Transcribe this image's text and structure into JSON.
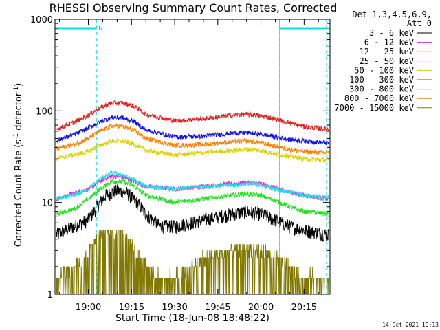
{
  "chart_data": {
    "type": "line",
    "title": "RHESSI Observing Summary Count Rates, Corrected",
    "xlabel": "Start Time (18-Jun-08 18:48:22)",
    "ylabel_main": "Corrected Count Rate (s",
    "ylabel_sup1": "-1",
    "ylabel_mid": " detector",
    "ylabel_sup2": "-1",
    "ylabel_end": ")",
    "yscale": "log",
    "ylim": [
      1,
      1000
    ],
    "x_range_minutes_from_1900": [
      -11.6,
      84.0
    ],
    "x_ticks": [
      {
        "min": 0,
        "label": "19:00"
      },
      {
        "min": 15,
        "label": "19:15"
      },
      {
        "min": 30,
        "label": "19:30"
      },
      {
        "min": 45,
        "label": "19:45"
      },
      {
        "min": 60,
        "label": "20:00"
      },
      {
        "min": 75,
        "label": "20:15"
      }
    ],
    "y_ticks": [
      {
        "value": 1,
        "label": "1"
      },
      {
        "value": 10,
        "label": "10"
      },
      {
        "value": 100,
        "label": "100"
      },
      {
        "value": 1000,
        "label": "1000"
      }
    ],
    "legend_header": [
      "Det 1,3,4,5,6,9,",
      "Att 0"
    ],
    "legend_position": "right",
    "night_markers": [
      {
        "min": 2.8,
        "label": "N"
      },
      {
        "min": 66.5,
        "label": ""
      },
      {
        "min": 82.8,
        "label": ""
      }
    ],
    "series": [
      {
        "name": "3 - 6 keV",
        "color": "#000000",
        "points": [
          [
            -11,
            4.5
          ],
          [
            -5,
            5.5
          ],
          [
            0,
            6.5
          ],
          [
            3,
            9
          ],
          [
            6,
            12
          ],
          [
            10,
            13.5
          ],
          [
            13,
            13
          ],
          [
            17,
            10
          ],
          [
            20,
            7.5
          ],
          [
            25,
            5.5
          ],
          [
            30,
            5.5
          ],
          [
            40,
            6.5
          ],
          [
            50,
            7.5
          ],
          [
            55,
            8
          ],
          [
            60,
            7.5
          ],
          [
            65,
            6.5
          ],
          [
            70,
            5.5
          ],
          [
            75,
            5
          ],
          [
            83,
            4.5
          ]
        ]
      },
      {
        "name": "6 - 12 keV",
        "color": "#e020e0",
        "points": [
          [
            -11,
            11
          ],
          [
            -5,
            12.5
          ],
          [
            0,
            14
          ],
          [
            4,
            17
          ],
          [
            8,
            19.5
          ],
          [
            12,
            19
          ],
          [
            16,
            17
          ],
          [
            20,
            15
          ],
          [
            30,
            14
          ],
          [
            40,
            15
          ],
          [
            50,
            16
          ],
          [
            55,
            16.5
          ],
          [
            60,
            16
          ],
          [
            65,
            14.5
          ],
          [
            70,
            13
          ],
          [
            75,
            12
          ],
          [
            83,
            11
          ]
        ]
      },
      {
        "name": "12 - 25 keV",
        "color": "#20e020",
        "points": [
          [
            -11,
            7.5
          ],
          [
            -5,
            8.5
          ],
          [
            0,
            11
          ],
          [
            4,
            14
          ],
          [
            8,
            17
          ],
          [
            12,
            17
          ],
          [
            16,
            15
          ],
          [
            20,
            12
          ],
          [
            30,
            10
          ],
          [
            40,
            11
          ],
          [
            50,
            12
          ],
          [
            55,
            12.5
          ],
          [
            60,
            12
          ],
          [
            65,
            10.5
          ],
          [
            70,
            9
          ],
          [
            75,
            8
          ],
          [
            83,
            7.5
          ]
        ]
      },
      {
        "name": "25 - 50 keV",
        "color": "#20e0e0",
        "points": [
          [
            -11,
            11
          ],
          [
            -5,
            12
          ],
          [
            0,
            14
          ],
          [
            4,
            18
          ],
          [
            8,
            21
          ],
          [
            12,
            20
          ],
          [
            16,
            17.5
          ],
          [
            20,
            15
          ],
          [
            30,
            14
          ],
          [
            40,
            15
          ],
          [
            50,
            15.5
          ],
          [
            55,
            16
          ],
          [
            60,
            15.5
          ],
          [
            65,
            14
          ],
          [
            70,
            13
          ],
          [
            75,
            12
          ],
          [
            83,
            11.5
          ]
        ]
      },
      {
        "name": "50 - 100 keV",
        "color": "#d8d000",
        "points": [
          [
            -11,
            30
          ],
          [
            -5,
            33
          ],
          [
            0,
            36
          ],
          [
            4,
            42
          ],
          [
            8,
            47
          ],
          [
            12,
            47
          ],
          [
            16,
            43
          ],
          [
            20,
            37
          ],
          [
            30,
            33
          ],
          [
            40,
            35
          ],
          [
            50,
            37
          ],
          [
            55,
            38
          ],
          [
            60,
            37
          ],
          [
            65,
            34
          ],
          [
            70,
            32
          ],
          [
            75,
            30
          ],
          [
            83,
            29
          ]
        ]
      },
      {
        "name": "100 - 300 keV",
        "color": "#e02020",
        "points": [
          [
            -11,
            63
          ],
          [
            -5,
            75
          ],
          [
            0,
            90
          ],
          [
            4,
            108
          ],
          [
            8,
            122
          ],
          [
            12,
            122
          ],
          [
            16,
            112
          ],
          [
            20,
            92
          ],
          [
            30,
            78
          ],
          [
            40,
            82
          ],
          [
            50,
            90
          ],
          [
            55,
            92
          ],
          [
            60,
            88
          ],
          [
            65,
            82
          ],
          [
            70,
            74
          ],
          [
            75,
            67
          ],
          [
            83,
            63
          ]
        ]
      },
      {
        "name": "300 - 800 keV",
        "color": "#1010e0",
        "points": [
          [
            -11,
            48
          ],
          [
            -5,
            55
          ],
          [
            0,
            65
          ],
          [
            4,
            76
          ],
          [
            8,
            85
          ],
          [
            12,
            84
          ],
          [
            16,
            76
          ],
          [
            20,
            62
          ],
          [
            30,
            52
          ],
          [
            40,
            53
          ],
          [
            50,
            57
          ],
          [
            55,
            58
          ],
          [
            60,
            56
          ],
          [
            65,
            52
          ],
          [
            70,
            49
          ],
          [
            75,
            47
          ],
          [
            83,
            45
          ]
        ]
      },
      {
        "name": "800 - 7000 keV",
        "color": "#ff7f00",
        "points": [
          [
            -11,
            39
          ],
          [
            -5,
            43
          ],
          [
            0,
            50
          ],
          [
            4,
            60
          ],
          [
            8,
            68
          ],
          [
            12,
            68
          ],
          [
            16,
            61
          ],
          [
            20,
            50
          ],
          [
            30,
            42
          ],
          [
            40,
            43
          ],
          [
            50,
            46
          ],
          [
            55,
            47
          ],
          [
            60,
            45
          ],
          [
            65,
            41
          ],
          [
            70,
            38
          ],
          [
            75,
            36
          ],
          [
            83,
            35
          ]
        ]
      },
      {
        "name": "7000 - 15000 keV",
        "color": "#807800",
        "points": [
          [
            -11,
            1.5
          ],
          [
            -5,
            2
          ],
          [
            0,
            3
          ],
          [
            3,
            4.2
          ],
          [
            6,
            5
          ],
          [
            10,
            5
          ],
          [
            13,
            4.5
          ],
          [
            16,
            3.2
          ],
          [
            20,
            2
          ],
          [
            25,
            1.5
          ],
          [
            30,
            1.5
          ],
          [
            40,
            2.5
          ],
          [
            50,
            3
          ],
          [
            55,
            3.2
          ],
          [
            60,
            3
          ],
          [
            65,
            2.5
          ],
          [
            70,
            2
          ],
          [
            75,
            1.5
          ],
          [
            83,
            1.5
          ]
        ]
      }
    ],
    "footer_timestamp": "14-Oct-2021 19:13"
  }
}
